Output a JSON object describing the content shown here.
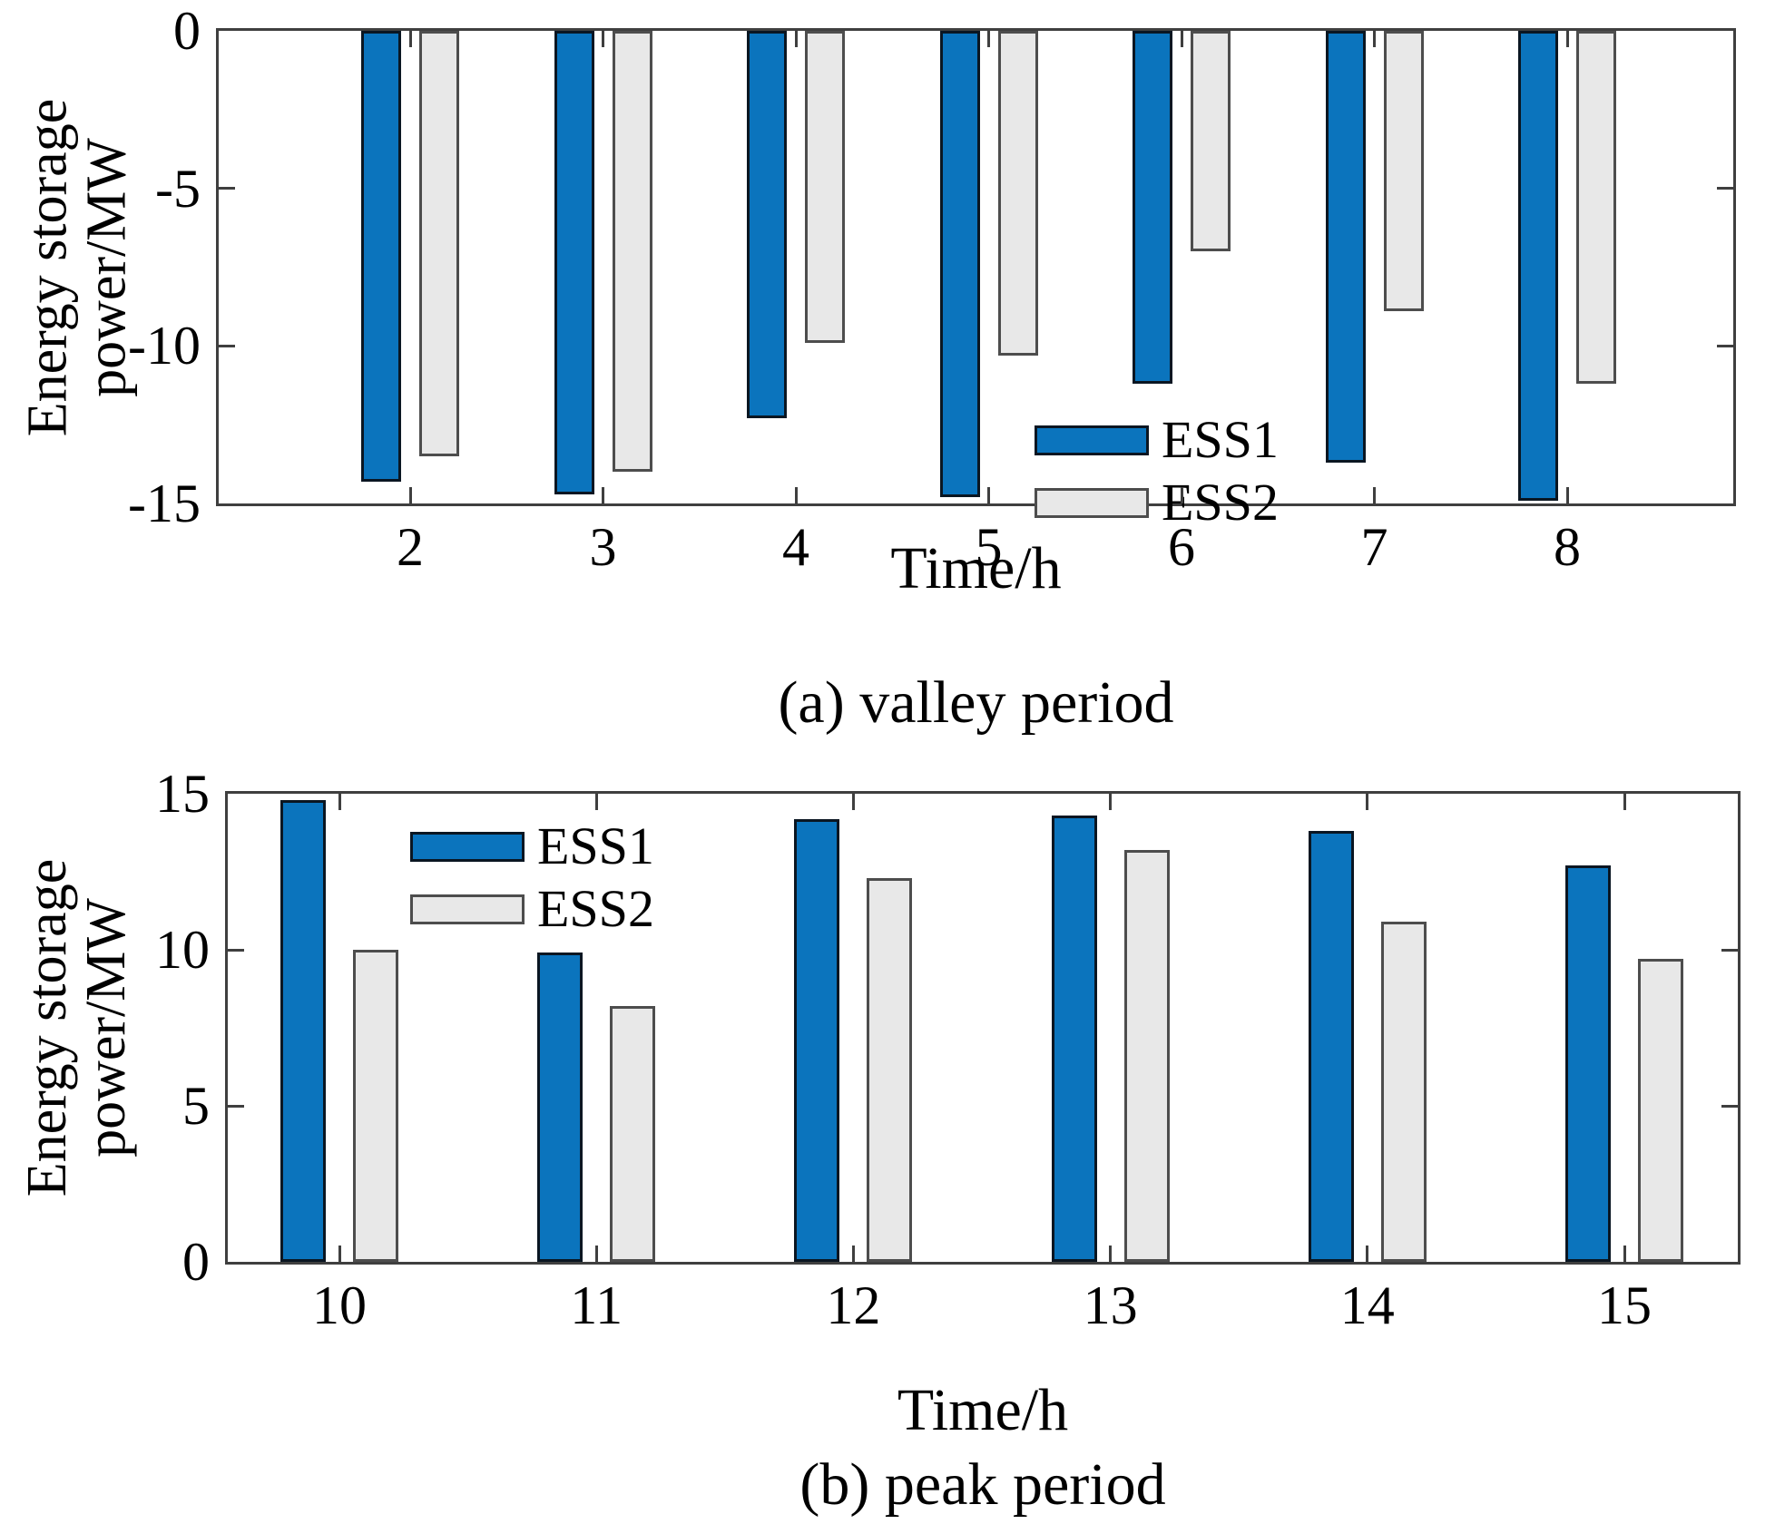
{
  "figure": {
    "background": "#ffffff",
    "text_color": "#000000",
    "axis_color": "#3f3f3f"
  },
  "colors": {
    "ess1_fill": "#0b74bd",
    "ess1_border": "#0a1622",
    "ess2_fill": "#e8e8e8",
    "ess2_border": "#4d4d4d"
  },
  "chart_data": [
    {
      "id": "valley",
      "type": "bar",
      "title": "(a) valley period",
      "xlabel": "Time/h",
      "ylabel_lines": [
        "Energy storage",
        "power/MW"
      ],
      "categories": [
        2,
        3,
        4,
        5,
        6,
        7,
        8
      ],
      "series": [
        {
          "name": "ESS1",
          "values": [
            -14.3,
            -14.7,
            -12.3,
            -14.8,
            -11.2,
            -13.7,
            -14.9
          ]
        },
        {
          "name": "ESS2",
          "values": [
            -13.5,
            -14.0,
            -9.9,
            -10.3,
            -7.0,
            -8.9,
            -11.2
          ]
        }
      ],
      "ylim": [
        -15,
        0
      ],
      "yticks": [
        0,
        -5,
        -10,
        -15
      ],
      "grid": false,
      "legend_position": "inside-center-right-bottom"
    },
    {
      "id": "peak",
      "type": "bar",
      "title": "(b) peak period",
      "xlabel": "Time/h",
      "ylabel_lines": [
        "Energy storage",
        "power/MW"
      ],
      "categories": [
        10,
        11,
        12,
        13,
        14,
        15
      ],
      "series": [
        {
          "name": "ESS1",
          "values": [
            14.8,
            9.9,
            14.2,
            14.3,
            13.8,
            12.7
          ]
        },
        {
          "name": "ESS2",
          "values": [
            10.0,
            8.2,
            12.3,
            13.2,
            10.9,
            9.7
          ]
        }
      ],
      "ylim": [
        0,
        15
      ],
      "yticks": [
        15,
        10,
        5,
        0
      ],
      "grid": false,
      "legend_position": "inside-top-left"
    }
  ]
}
